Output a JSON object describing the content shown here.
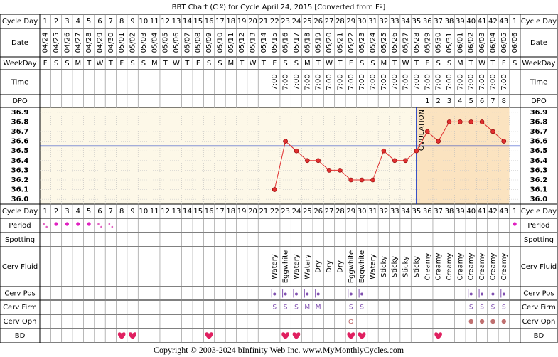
{
  "chart_data": {
    "type": "line",
    "title": "BBT Chart (C º) for Cycle April 24, 2015  [Converted from Fº]",
    "rows": {
      "cycle_day": "Cycle Day",
      "date": "Date",
      "weekday": "WeekDay",
      "time": "Time",
      "dpo": "DPO",
      "period": "Period",
      "spotting": "Spotting",
      "cerv_fluid": "Cerv Fluid",
      "cerv_pos": "Cerv Pos",
      "cerv_firm": "Cerv Firm",
      "cerv_opn": "Cerv Opn",
      "bd": "BD"
    },
    "cycle_days": [
      1,
      2,
      3,
      4,
      5,
      6,
      7,
      8,
      9,
      10,
      11,
      12,
      13,
      14,
      15,
      16,
      17,
      18,
      19,
      20,
      21,
      22,
      23,
      24,
      25,
      26,
      27,
      28,
      29,
      30,
      31,
      32,
      33,
      34,
      35,
      36,
      37,
      38,
      39,
      40,
      41,
      42,
      43,
      1
    ],
    "dates": [
      "04/24",
      "04/25",
      "04/26",
      "04/27",
      "04/28",
      "04/29",
      "04/30",
      "05/01",
      "05/02",
      "05/03",
      "05/04",
      "05/05",
      "05/06",
      "05/07",
      "05/08",
      "05/09",
      "05/10",
      "05/11",
      "05/12",
      "05/13",
      "05/14",
      "05/15",
      "05/16",
      "05/17",
      "05/18",
      "05/19",
      "05/20",
      "05/21",
      "05/22",
      "05/23",
      "05/24",
      "05/25",
      "05/26",
      "05/27",
      "05/28",
      "05/29",
      "05/30",
      "05/31",
      "06/01",
      "06/02",
      "06/03",
      "06/04",
      "06/05",
      "06/06"
    ],
    "weekdays": [
      "F",
      "S",
      "S",
      "M",
      "T",
      "W",
      "T",
      "F",
      "S",
      "S",
      "M",
      "T",
      "W",
      "T",
      "F",
      "S",
      "S",
      "M",
      "T",
      "W",
      "T",
      "F",
      "S",
      "S",
      "M",
      "T",
      "W",
      "T",
      "F",
      "S",
      "S",
      "M",
      "T",
      "W",
      "T",
      "F",
      "S",
      "S",
      "M",
      "T",
      "W",
      "T",
      "F",
      "S"
    ],
    "times": [
      null,
      null,
      null,
      null,
      null,
      null,
      null,
      null,
      null,
      null,
      null,
      null,
      null,
      null,
      null,
      null,
      null,
      null,
      null,
      null,
      null,
      "7:00",
      "7:00",
      "7:00",
      "7:00",
      "7:00",
      "7:00",
      "7:00",
      "7:00",
      "7:00",
      "7:00",
      "7:00",
      "7:00",
      "7:00",
      "7:00",
      "7:00",
      "7:00",
      "7:00",
      "7:00",
      "7:00",
      "7:00",
      "7:00",
      "7:00",
      null
    ],
    "dpo": [
      null,
      null,
      null,
      null,
      null,
      null,
      null,
      null,
      null,
      null,
      null,
      null,
      null,
      null,
      null,
      null,
      null,
      null,
      null,
      null,
      null,
      null,
      null,
      null,
      null,
      null,
      null,
      null,
      null,
      null,
      null,
      null,
      null,
      null,
      null,
      1,
      2,
      3,
      4,
      5,
      6,
      7,
      8,
      null
    ],
    "values": [
      null,
      null,
      null,
      null,
      null,
      null,
      null,
      null,
      null,
      null,
      null,
      null,
      null,
      null,
      null,
      null,
      null,
      null,
      null,
      null,
      null,
      36.1,
      36.6,
      36.5,
      36.4,
      36.4,
      36.3,
      36.3,
      36.2,
      36.2,
      36.2,
      36.5,
      36.4,
      36.4,
      36.5,
      36.7,
      36.6,
      36.8,
      36.8,
      36.8,
      36.8,
      36.7,
      36.6,
      null
    ],
    "color": "#e03030",
    "ylim": [
      35.95,
      36.95
    ],
    "yticks": [
      {
        "value": 36,
        "label": "36.0"
      },
      36.1,
      36.2,
      36.3,
      36.4,
      36.5,
      36.6,
      36.7,
      36.8,
      36.9
    ],
    "coverline": 36.55,
    "ovulation_day": 35,
    "ovulation_label": "OVULATION",
    "cerv_fluid": [
      null,
      null,
      null,
      null,
      null,
      null,
      null,
      null,
      null,
      null,
      null,
      null,
      null,
      null,
      null,
      null,
      null,
      null,
      null,
      null,
      null,
      "Watery",
      "Eggwhite",
      "Watery",
      "Watery",
      "Dry",
      "Dry",
      "Dry",
      "Eggwhite",
      "Eggwhite",
      "Watery",
      "Sticky",
      "Sticky",
      "Sticky",
      "Sticky",
      "Creamy",
      "Creamy",
      "Creamy",
      "Creamy",
      "Creamy",
      "Creamy",
      "Creamy",
      "Creamy",
      null
    ],
    "cerv_firm": [
      null,
      null,
      null,
      null,
      null,
      null,
      null,
      null,
      null,
      null,
      null,
      null,
      null,
      null,
      null,
      null,
      null,
      null,
      null,
      null,
      null,
      "S",
      "S",
      "S",
      "M",
      "M",
      null,
      null,
      "S",
      "S",
      null,
      null,
      null,
      null,
      null,
      null,
      null,
      null,
      null,
      "S",
      "S",
      "S",
      "S",
      null
    ]
  },
  "footer": "Copyright © 2003-2024 bInfinity Web Inc.    www.MyMonthlyCycles.com"
}
